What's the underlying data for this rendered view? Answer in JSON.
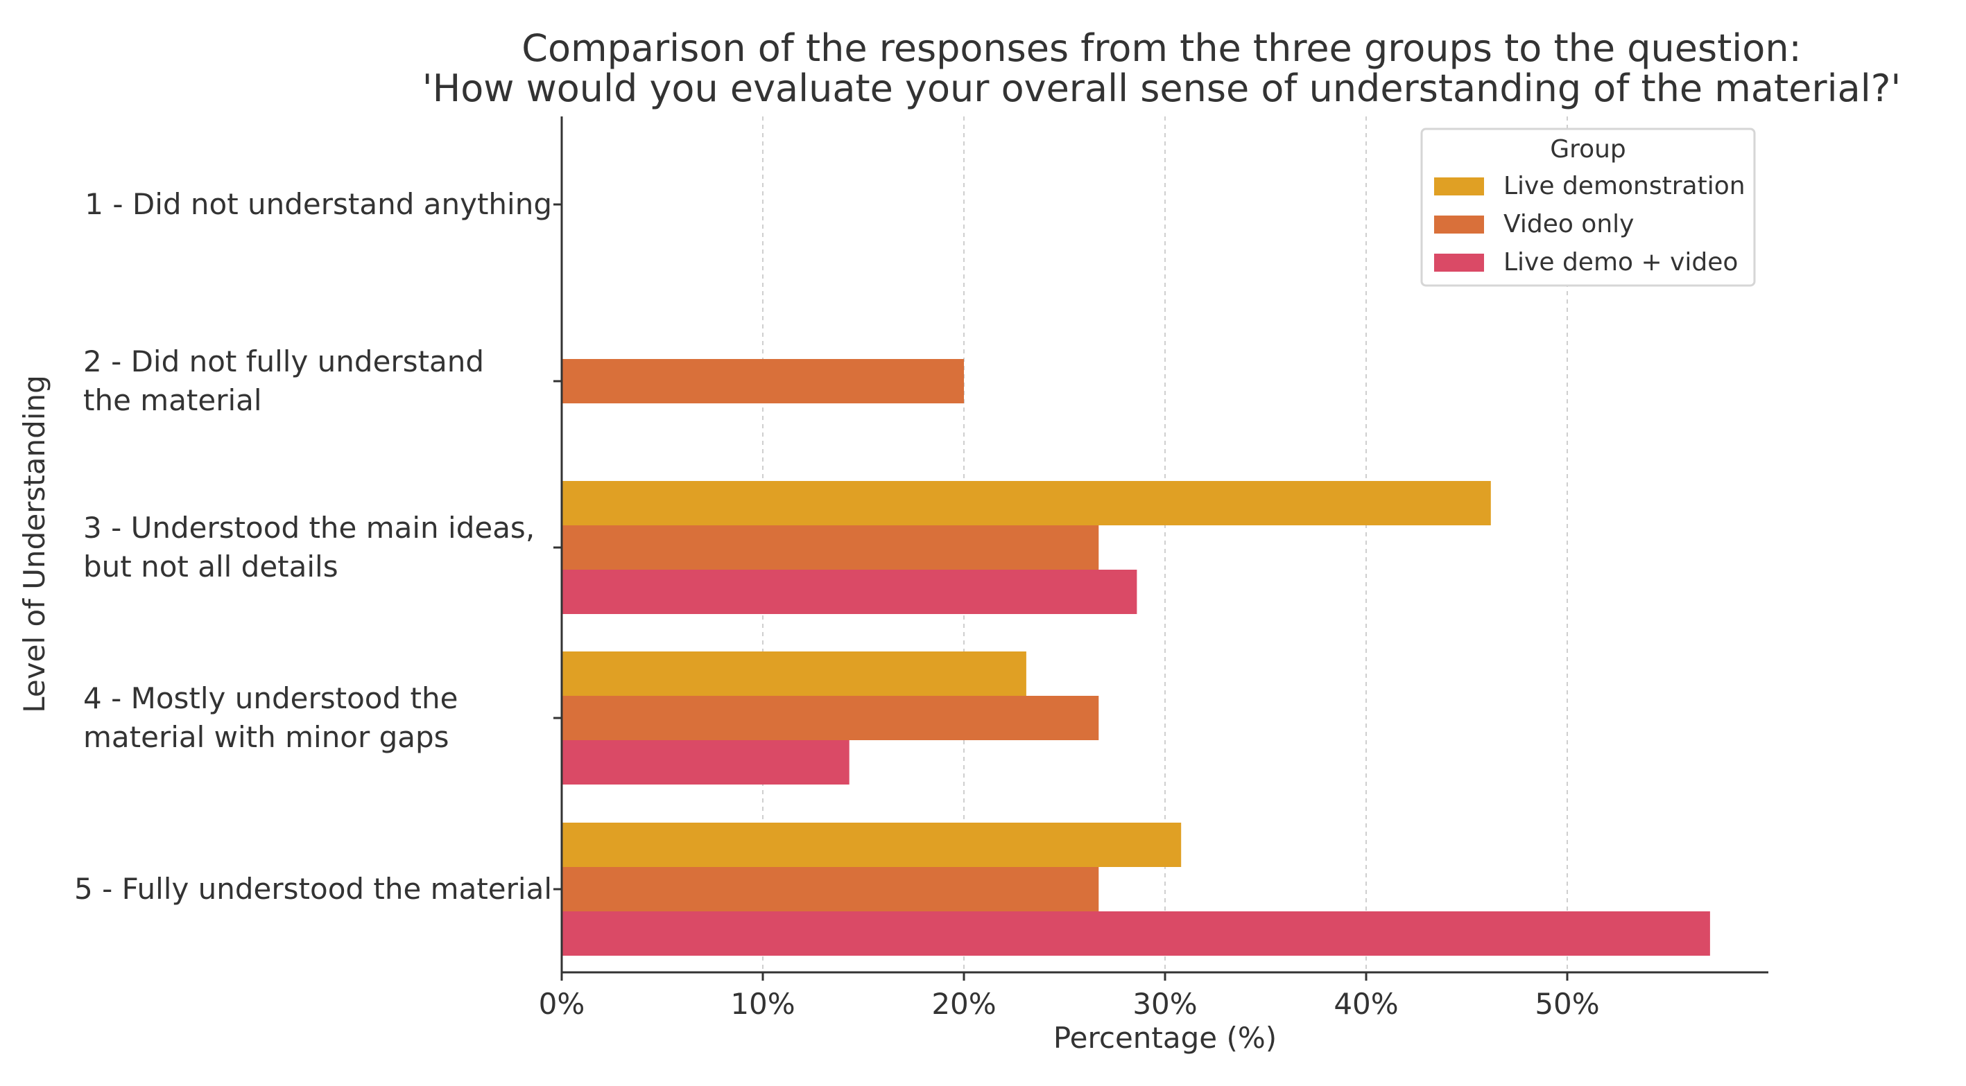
{
  "chart_data": {
    "type": "bar",
    "orientation": "horizontal",
    "title": "Comparison of the responses from the three groups to the question:",
    "subtitle": "'How would you evaluate your overall sense of understanding of the material?'",
    "xlabel": "Percentage (%)",
    "ylabel": "Level of Understanding",
    "xlim": [
      0,
      60
    ],
    "xticks": [
      0,
      10,
      20,
      30,
      40,
      50
    ],
    "xtick_labels": [
      "0%",
      "10%",
      "20%",
      "30%",
      "40%",
      "50%"
    ],
    "grid": "x, dashed",
    "legend_title": "Group",
    "legend_position": "top-right",
    "categories": [
      [
        "1 - Did not understand anything"
      ],
      [
        "2 - Did not fully understand",
        "the material"
      ],
      [
        "3 - Understood the main ideas,",
        "but not all details"
      ],
      [
        "4 - Mostly understood the",
        "material with minor gaps"
      ],
      [
        "5 - Fully understood the material"
      ]
    ],
    "series": [
      {
        "name": "Live demonstration",
        "color": "#E0A024",
        "values": [
          0,
          0,
          46.2,
          23.1,
          30.8
        ]
      },
      {
        "name": "Video only",
        "color": "#D9703A",
        "values": [
          0,
          20.0,
          26.7,
          26.7,
          26.7
        ]
      },
      {
        "name": "Live demo + video",
        "color": "#DA4A66",
        "values": [
          0,
          0,
          28.6,
          14.3,
          57.1
        ]
      }
    ]
  }
}
